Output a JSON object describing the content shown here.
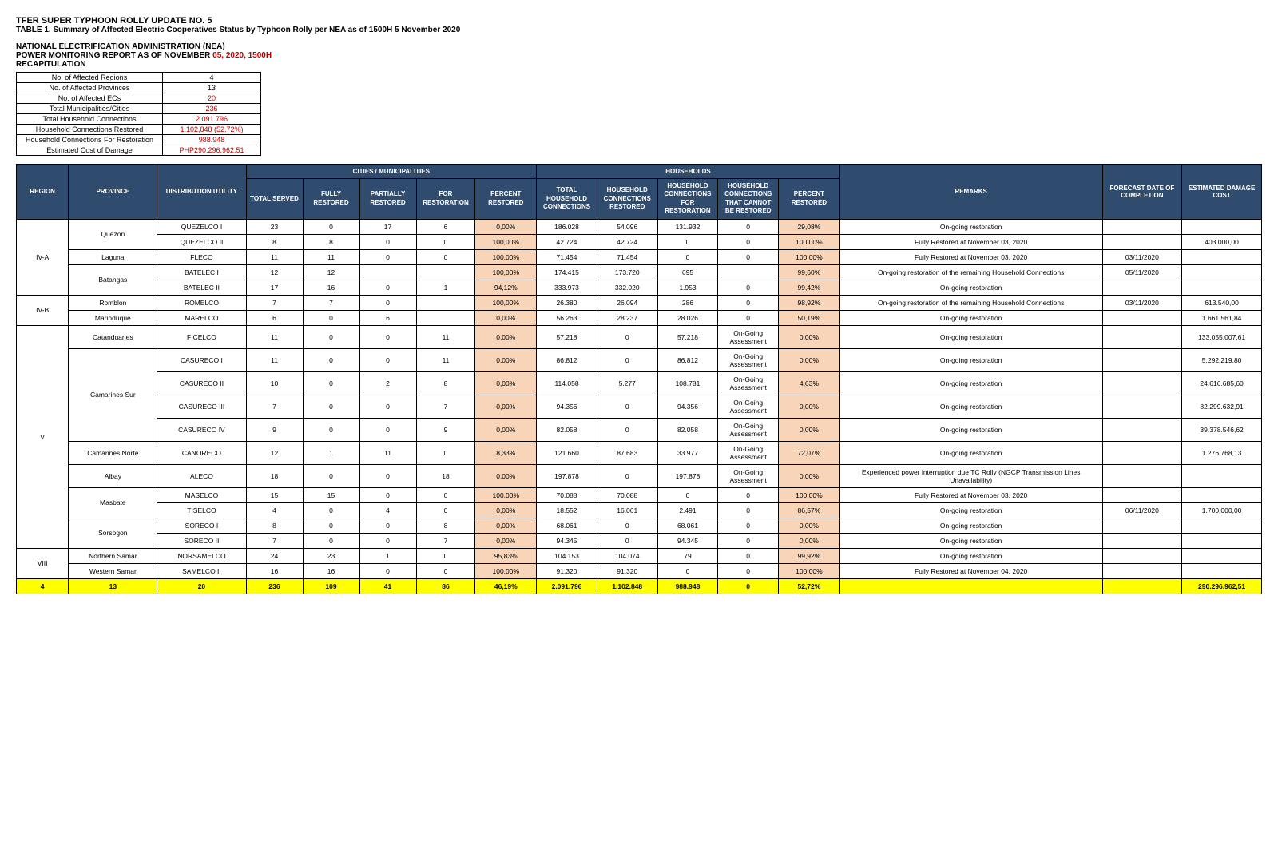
{
  "header": {
    "title1": "TFER SUPER TYPHOON ROLLY UPDATE NO. 5",
    "title2": "TABLE 1. Summary of Affected Electric Cooperatives Status by Typhoon Rolly per NEA as of 1500H 5 November 2020",
    "title3": "NATIONAL ELECTRIFICATION ADMINISTRATION (NEA)",
    "title4_pre": "POWER MONITORING REPORT AS OF NOVEMBER",
    "title4_date": " 05, 2020, ",
    "title4_time": "1500H",
    "title5": "RECAPITULATION"
  },
  "recap": [
    {
      "label": "No. of Affected Regions",
      "value": "4",
      "red": false
    },
    {
      "label": "No. of Affected Provinces",
      "value": "13",
      "red": false
    },
    {
      "label": "No. of Affected ECs",
      "value": "20",
      "red": true
    },
    {
      "label": "Total Municipalities/Cities",
      "value": "236",
      "red": true
    },
    {
      "label": "Total Household Connections",
      "value": "2.091.796",
      "red": true
    },
    {
      "label": "Household Connections Restored",
      "value": "1,102,848 (52.72%)",
      "red": true
    },
    {
      "label": "Household Connections For Restoration",
      "value": "988.948",
      "red": true
    },
    {
      "label": "Estimated Cost of Damage",
      "value": "PHP290,296,962.51",
      "red": true
    }
  ],
  "columns": {
    "region": "REGION",
    "province": "PROVINCE",
    "du": "DISTRIBUTION UTILITY",
    "cm_group": "CITIES / MUNICIPALITIES",
    "hh_group": "HOUSEHOLDS",
    "total_served": "TOTAL SERVED",
    "fully": "FULLY RESTORED",
    "partial": "PARTIALLY RESTORED",
    "for_rest": "FOR RESTORATION",
    "pct": "PERCENT RESTORED",
    "hh_total": "TOTAL HOUSEHOLD CONNECTIONS",
    "hh_rest": "HOUSEHOLD CONNECTIONS RESTORED",
    "hh_for": "HOUSEHOLD CONNECTIONS FOR RESTORATION",
    "hh_cannot": "HOUSEHOLD CONNECTIONS THAT CANNOT BE RESTORED",
    "hh_pct": "PERCENT RESTORED",
    "remarks": "REMARKS",
    "forecast": "FORECAST DATE OF COMPLETION",
    "cost": "ESTIMATED DAMAGE COST"
  },
  "groups": [
    {
      "region": "IV-A",
      "provinces": [
        {
          "name": "Quezon",
          "rows": [
            {
              "du": "QUEZELCO I",
              "ts": "23",
              "fr": "0",
              "pr": "17",
              "forr": "6",
              "pct": "0,00%",
              "hht": "186.028",
              "hhr": "54.096",
              "hhf": "131.932",
              "hhc": "0",
              "hhp": "29,08%",
              "rem": "On-going restoration",
              "fc": "",
              "cost": ""
            },
            {
              "du": "QUEZELCO II",
              "ts": "8",
              "fr": "8",
              "pr": "0",
              "forr": "0",
              "pct": "100,00%",
              "hht": "42.724",
              "hhr": "42.724",
              "hhf": "0",
              "hhc": "0",
              "hhp": "100,00%",
              "rem": "Fully Restored at November 03, 2020",
              "fc": "",
              "cost": "403.000,00"
            }
          ]
        },
        {
          "name": "Laguna",
          "rows": [
            {
              "du": "FLECO",
              "ts": "11",
              "fr": "11",
              "pr": "0",
              "forr": "0",
              "pct": "100,00%",
              "hht": "71.454",
              "hhr": "71.454",
              "hhf": "0",
              "hhc": "0",
              "hhp": "100,00%",
              "rem": "Fully Restored at November 03, 2020",
              "fc": "03/11/2020",
              "cost": ""
            }
          ]
        },
        {
          "name": "Batangas",
          "rows": [
            {
              "du": "BATELEC I",
              "ts": "12",
              "fr": "12",
              "pr": "",
              "forr": "",
              "pct": "100,00%",
              "hht": "174.415",
              "hhr": "173.720",
              "hhf": "695",
              "hhc": "",
              "hhp": "99,60%",
              "rem": "On-going restoration of the remaining Household Connections",
              "fc": "05/11/2020",
              "cost": ""
            },
            {
              "du": "BATELEC II",
              "ts": "17",
              "fr": "16",
              "pr": "0",
              "forr": "1",
              "pct": "94,12%",
              "hht": "333.973",
              "hhr": "332.020",
              "hhf": "1.953",
              "hhc": "0",
              "hhp": "99,42%",
              "rem": "On-going restoration",
              "fc": "",
              "cost": ""
            }
          ]
        }
      ]
    },
    {
      "region": "IV-B",
      "provinces": [
        {
          "name": "Romblon",
          "rows": [
            {
              "du": "ROMELCO",
              "ts": "7",
              "fr": "7",
              "pr": "0",
              "forr": "",
              "pct": "100,00%",
              "hht": "26.380",
              "hhr": "26.094",
              "hhf": "286",
              "hhc": "0",
              "hhp": "98,92%",
              "rem": "On-going restoration of the remaining Household Connections",
              "fc": "03/11/2020",
              "cost": "613.540,00"
            }
          ]
        },
        {
          "name": "Marinduque",
          "rows": [
            {
              "du": "MARELCO",
              "ts": "6",
              "fr": "0",
              "pr": "6",
              "forr": "",
              "pct": "0,00%",
              "hht": "56.263",
              "hhr": "28.237",
              "hhf": "28.026",
              "hhc": "0",
              "hhp": "50,19%",
              "rem": "On-going restoration",
              "fc": "",
              "cost": "1.661.561,84"
            }
          ]
        }
      ]
    },
    {
      "region": "V",
      "provinces": [
        {
          "name": "Catanduanes",
          "rows": [
            {
              "du": "FICELCO",
              "ts": "11",
              "fr": "0",
              "pr": "0",
              "forr": "11",
              "pct": "0,00%",
              "hht": "57.218",
              "hhr": "0",
              "hhf": "57.218",
              "hhc": "On-Going Assessment",
              "hhp": "0,00%",
              "rem": "On-going restoration",
              "fc": "",
              "cost": "133.055.007,61"
            }
          ]
        },
        {
          "name": "Camarines Sur",
          "rows": [
            {
              "du": "CASURECO I",
              "ts": "11",
              "fr": "0",
              "pr": "0",
              "forr": "11",
              "pct": "0,00%",
              "hht": "86.812",
              "hhr": "0",
              "hhf": "86.812",
              "hhc": "On-Going Assessment",
              "hhp": "0,00%",
              "rem": "On-going restoration",
              "fc": "",
              "cost": "5.292.219,80"
            },
            {
              "du": "CASURECO II",
              "ts": "10",
              "fr": "0",
              "pr": "2",
              "forr": "8",
              "pct": "0,00%",
              "hht": "114.058",
              "hhr": "5.277",
              "hhf": "108.781",
              "hhc": "On-Going Assessment",
              "hhp": "4,63%",
              "rem": "On-going restoration",
              "fc": "",
              "cost": "24.616.685,60"
            },
            {
              "du": "CASURECO III",
              "ts": "7",
              "fr": "0",
              "pr": "0",
              "forr": "7",
              "pct": "0,00%",
              "hht": "94.356",
              "hhr": "0",
              "hhf": "94.356",
              "hhc": "On-Going Assessment",
              "hhp": "0,00%",
              "rem": "On-going restoration",
              "fc": "",
              "cost": "82.299.632,91"
            },
            {
              "du": "CASURECO IV",
              "ts": "9",
              "fr": "0",
              "pr": "0",
              "forr": "9",
              "pct": "0,00%",
              "hht": "82.058",
              "hhr": "0",
              "hhf": "82.058",
              "hhc": "On-Going Assessment",
              "hhp": "0,00%",
              "rem": "On-going restoration",
              "fc": "",
              "cost": "39.378.546,62"
            }
          ]
        },
        {
          "name": "Camarines Norte",
          "rows": [
            {
              "du": "CANORECO",
              "ts": "12",
              "fr": "1",
              "pr": "11",
              "forr": "0",
              "pct": "8,33%",
              "hht": "121.660",
              "hhr": "87.683",
              "hhf": "33.977",
              "hhc": "On-Going Assessment",
              "hhp": "72,07%",
              "rem": "On-going restoration",
              "fc": "",
              "cost": "1.276.768,13"
            }
          ]
        },
        {
          "name": "Albay",
          "rows": [
            {
              "du": "ALECO",
              "ts": "18",
              "fr": "0",
              "pr": "0",
              "forr": "18",
              "pct": "0,00%",
              "hht": "197.878",
              "hhr": "0",
              "hhf": "197.878",
              "hhc": "On-Going Assessment",
              "hhp": "0,00%",
              "rem": "Experienced power interruption due TC Rolly (NGCP Transmission Lines Unavailability)",
              "fc": "",
              "cost": ""
            }
          ]
        },
        {
          "name": "Masbate",
          "rows": [
            {
              "du": "MASELCO",
              "ts": "15",
              "fr": "15",
              "pr": "0",
              "forr": "0",
              "pct": "100,00%",
              "hht": "70.088",
              "hhr": "70.088",
              "hhf": "0",
              "hhc": "0",
              "hhp": "100,00%",
              "rem": "Fully Restored at November 03, 2020",
              "fc": "",
              "cost": ""
            },
            {
              "du": "TISELCO",
              "ts": "4",
              "fr": "0",
              "pr": "4",
              "forr": "0",
              "pct": "0,00%",
              "hht": "18.552",
              "hhr": "16.061",
              "hhf": "2.491",
              "hhc": "0",
              "hhp": "86,57%",
              "rem": "On-going restoration",
              "fc": "06/11/2020",
              "cost": "1.700.000,00"
            }
          ]
        },
        {
          "name": "Sorsogon",
          "rows": [
            {
              "du": "SORECO I",
              "ts": "8",
              "fr": "0",
              "pr": "0",
              "forr": "8",
              "pct": "0,00%",
              "hht": "68.061",
              "hhr": "0",
              "hhf": "68.061",
              "hhc": "0",
              "hhp": "0,00%",
              "rem": "On-going restoration",
              "fc": "",
              "cost": ""
            },
            {
              "du": "SORECO II",
              "ts": "7",
              "fr": "0",
              "pr": "0",
              "forr": "7",
              "pct": "0,00%",
              "hht": "94.345",
              "hhr": "0",
              "hhf": "94.345",
              "hhc": "0",
              "hhp": "0,00%",
              "rem": "On-going restoration",
              "fc": "",
              "cost": ""
            }
          ]
        }
      ]
    },
    {
      "region": "VIII",
      "provinces": [
        {
          "name": "Northern Samar",
          "rows": [
            {
              "du": "NORSAMELCO",
              "ts": "24",
              "fr": "23",
              "pr": "1",
              "forr": "0",
              "pct": "95,83%",
              "hht": "104.153",
              "hhr": "104.074",
              "hhf": "79",
              "hhc": "0",
              "hhp": "99,92%",
              "rem": "On-going restoration",
              "fc": "",
              "cost": ""
            }
          ]
        },
        {
          "name": "Western Samar",
          "rows": [
            {
              "du": "SAMELCO II",
              "ts": "16",
              "fr": "16",
              "pr": "0",
              "forr": "0",
              "pct": "100,00%",
              "hht": "91.320",
              "hhr": "91.320",
              "hhf": "0",
              "hhc": "0",
              "hhp": "100,00%",
              "rem": "Fully Restored at November 04, 2020",
              "fc": "",
              "cost": ""
            }
          ]
        }
      ]
    }
  ],
  "totals": {
    "region": "4",
    "province": "13",
    "du": "20",
    "ts": "236",
    "fr": "109",
    "pr": "41",
    "forr": "86",
    "pct": "46,19%",
    "hht": "2.091.796",
    "hhr": "1.102.848",
    "hhf": "988.948",
    "hhc": "0",
    "hhp": "52,72%",
    "rem": "",
    "fc": "",
    "cost": "290.296.962,51"
  }
}
